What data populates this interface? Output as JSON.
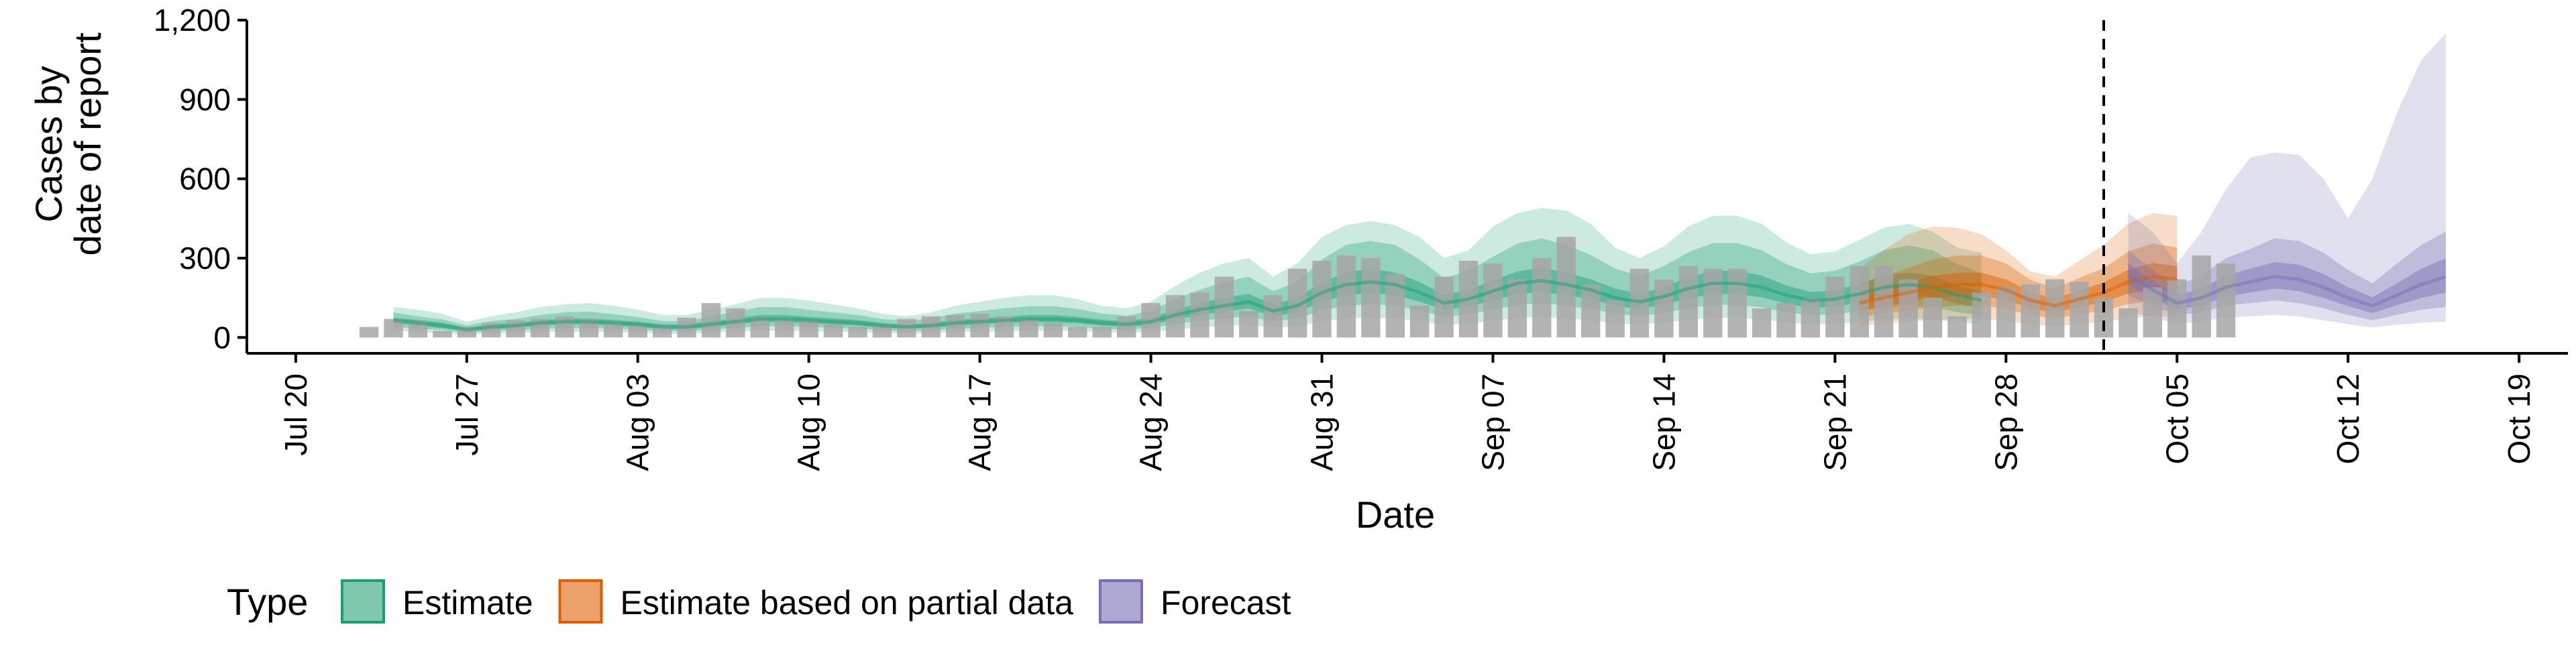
{
  "chart_data": {
    "type": "area",
    "xlabel": "Date",
    "ylabel_lines": [
      "Cases by",
      "date of report"
    ],
    "x_range": [
      "2020-07-18",
      "2020-10-21"
    ],
    "ylim": [
      -60,
      1200
    ],
    "y_ticks": [
      0,
      300,
      600,
      900,
      1200
    ],
    "y_tick_labels": [
      "0",
      "300",
      "600",
      "900",
      "1,200"
    ],
    "x_ticks": [
      "2020-07-20",
      "2020-07-27",
      "2020-08-03",
      "2020-08-10",
      "2020-08-17",
      "2020-08-24",
      "2020-08-31",
      "2020-09-07",
      "2020-09-14",
      "2020-09-21",
      "2020-09-28",
      "2020-10-05",
      "2020-10-12",
      "2020-10-19"
    ],
    "x_tick_labels": [
      "Jul 20",
      "Jul 27",
      "Aug 03",
      "Aug 10",
      "Aug 17",
      "Aug 24",
      "Aug 31",
      "Sep 07",
      "Sep 14",
      "Sep 21",
      "Sep 28",
      "Oct 05",
      "Oct 12",
      "Oct 19"
    ],
    "grid": false,
    "legend_position": "bottom",
    "legend_title": "Type",
    "legend_items": [
      {
        "label": "Estimate",
        "fill": "#7fc7ad",
        "stroke": "#1b9e77"
      },
      {
        "label": "Estimate based on partial data",
        "fill": "#eca06b",
        "stroke": "#d95f02"
      },
      {
        "label": "Forecast",
        "fill": "#ada9d2",
        "stroke": "#7570b3"
      }
    ],
    "vline_date": "2020-10-02",
    "colors": {
      "bars": "#a6a6a6",
      "estimate": "#1b9e77",
      "partial": "#d95f02",
      "forecast": "#7570b3"
    },
    "observed": {
      "start": "2020-07-23",
      "values": [
        40,
        70,
        60,
        25,
        40,
        55,
        65,
        70,
        80,
        70,
        55,
        45,
        45,
        75,
        130,
        110,
        75,
        70,
        65,
        50,
        40,
        45,
        70,
        80,
        85,
        90,
        80,
        70,
        55,
        40,
        40,
        80,
        130,
        160,
        170,
        230,
        100,
        160,
        260,
        290,
        310,
        300,
        240,
        120,
        230,
        290,
        280,
        220,
        300,
        380,
        200,
        140,
        260,
        220,
        270,
        260,
        260,
        110,
        130,
        150,
        230,
        270,
        270,
        220,
        150,
        80,
        170,
        190,
        200,
        220,
        210,
        150,
        110,
        190,
        220,
        310,
        280
      ]
    },
    "estimate": {
      "start": "2020-07-24",
      "median": [
        65,
        55,
        45,
        30,
        40,
        45,
        55,
        60,
        60,
        55,
        50,
        40,
        40,
        50,
        60,
        70,
        70,
        65,
        60,
        55,
        45,
        40,
        45,
        55,
        60,
        65,
        70,
        70,
        65,
        55,
        50,
        60,
        85,
        105,
        120,
        135,
        100,
        120,
        170,
        200,
        210,
        200,
        170,
        130,
        145,
        175,
        205,
        215,
        200,
        180,
        150,
        135,
        155,
        185,
        205,
        205,
        190,
        160,
        140,
        145,
        165,
        190,
        200,
        190,
        160,
        140
      ],
      "inner_lo": [
        55,
        45,
        35,
        25,
        30,
        37,
        45,
        50,
        50,
        45,
        40,
        32,
        32,
        40,
        50,
        58,
        58,
        54,
        50,
        45,
        37,
        33,
        37,
        45,
        50,
        54,
        58,
        58,
        54,
        45,
        40,
        48,
        68,
        85,
        98,
        110,
        80,
        96,
        136,
        160,
        168,
        160,
        136,
        104,
        116,
        140,
        164,
        172,
        160,
        144,
        120,
        108,
        124,
        148,
        164,
        164,
        152,
        128,
        112,
        116,
        132,
        152,
        160,
        152,
        128,
        112
      ],
      "inner_hi": [
        75,
        66,
        56,
        36,
        50,
        55,
        65,
        72,
        72,
        66,
        60,
        50,
        50,
        62,
        72,
        85,
        85,
        78,
        72,
        66,
        55,
        48,
        55,
        67,
        72,
        78,
        85,
        85,
        78,
        67,
        62,
        74,
        105,
        130,
        150,
        165,
        125,
        150,
        210,
        245,
        260,
        245,
        210,
        160,
        180,
        215,
        250,
        265,
        245,
        220,
        185,
        166,
        190,
        228,
        252,
        252,
        234,
        197,
        172,
        178,
        203,
        234,
        246,
        234,
        197,
        172
      ],
      "mid_lo": [
        40,
        33,
        28,
        18,
        24,
        27,
        33,
        35,
        36,
        33,
        30,
        24,
        24,
        30,
        36,
        42,
        42,
        40,
        36,
        33,
        27,
        24,
        27,
        33,
        36,
        40,
        42,
        42,
        40,
        33,
        30,
        36,
        51,
        63,
        72,
        80,
        60,
        72,
        102,
        120,
        126,
        120,
        102,
        78,
        87,
        105,
        123,
        129,
        120,
        108,
        90,
        80,
        93,
        111,
        123,
        123,
        114,
        96,
        84,
        87,
        99,
        114,
        120,
        114,
        96,
        84
      ],
      "mid_hi": [
        95,
        80,
        68,
        45,
        62,
        70,
        85,
        95,
        98,
        88,
        78,
        62,
        62,
        80,
        98,
        115,
        115,
        105,
        95,
        85,
        70,
        62,
        72,
        90,
        100,
        110,
        118,
        118,
        108,
        90,
        82,
        100,
        145,
        180,
        210,
        230,
        175,
        210,
        295,
        350,
        365,
        350,
        295,
        225,
        252,
        305,
        355,
        375,
        350,
        312,
        260,
        233,
        270,
        322,
        357,
        357,
        330,
        278,
        243,
        252,
        287,
        330,
        348,
        330,
        278,
        243
      ],
      "outer_lo": [
        25,
        20,
        16,
        10,
        14,
        16,
        20,
        22,
        22,
        20,
        18,
        14,
        14,
        18,
        22,
        26,
        26,
        24,
        22,
        20,
        16,
        14,
        16,
        20,
        22,
        24,
        26,
        26,
        24,
        20,
        18,
        22,
        30,
        38,
        43,
        48,
        36,
        43,
        61,
        72,
        75,
        72,
        61,
        47,
        52,
        63,
        74,
        77,
        72,
        65,
        54,
        48,
        56,
        66,
        74,
        74,
        68,
        58,
        50,
        52,
        59,
        68,
        72,
        68,
        58,
        50
      ],
      "outer_hi": [
        115,
        105,
        90,
        60,
        80,
        95,
        115,
        125,
        130,
        120,
        105,
        85,
        85,
        105,
        125,
        150,
        150,
        140,
        125,
        110,
        90,
        80,
        95,
        120,
        135,
        150,
        160,
        160,
        145,
        120,
        110,
        135,
        195,
        245,
        280,
        300,
        230,
        280,
        380,
        425,
        440,
        425,
        380,
        300,
        330,
        420,
        470,
        490,
        480,
        430,
        340,
        300,
        345,
        420,
        460,
        460,
        430,
        360,
        315,
        325,
        370,
        415,
        430,
        400,
        340,
        320
      ]
    },
    "partial": {
      "start": "2020-09-22",
      "median": [
        130,
        150,
        170,
        190,
        200,
        200,
        180,
        140,
        120,
        145,
        170,
        210,
        230,
        220
      ],
      "inner_lo": [
        100,
        118,
        134,
        150,
        158,
        158,
        142,
        110,
        94,
        114,
        134,
        166,
        182,
        174
      ],
      "inner_hi": [
        160,
        185,
        208,
        232,
        245,
        245,
        220,
        172,
        147,
        178,
        208,
        256,
        282,
        270
      ],
      "mid_lo": [
        78,
        90,
        102,
        114,
        120,
        120,
        108,
        84,
        72,
        87,
        102,
        126,
        138,
        132
      ],
      "mid_hi": [
        200,
        232,
        262,
        295,
        310,
        310,
        280,
        218,
        186,
        225,
        262,
        325,
        355,
        340
      ],
      "outer_lo": [
        45,
        52,
        60,
        66,
        70,
        70,
        63,
        49,
        42,
        51,
        60,
        73,
        81,
        77
      ],
      "outer_hi": [
        260,
        330,
        390,
        420,
        415,
        390,
        330,
        250,
        230,
        290,
        350,
        430,
        470,
        460
      ]
    },
    "forecast": {
      "start": "2020-10-03",
      "median": [
        240,
        180,
        130,
        150,
        190,
        210,
        230,
        220,
        190,
        150,
        120,
        160,
        200,
        230
      ],
      "inner_lo": [
        200,
        150,
        105,
        120,
        155,
        170,
        185,
        175,
        150,
        118,
        92,
        122,
        150,
        170
      ],
      "inner_hi": [
        280,
        215,
        160,
        185,
        235,
        260,
        285,
        275,
        240,
        190,
        152,
        205,
        260,
        300
      ],
      "mid_lo": [
        160,
        120,
        85,
        95,
        120,
        130,
        140,
        130,
        110,
        85,
        65,
        85,
        105,
        115
      ],
      "mid_hi": [
        330,
        255,
        195,
        235,
        300,
        335,
        375,
        365,
        320,
        255,
        205,
        280,
        350,
        400
      ],
      "outer_lo": [
        100,
        75,
        52,
        60,
        75,
        80,
        85,
        80,
        65,
        50,
        38,
        48,
        55,
        60
      ],
      "outer_hi": [
        470,
        400,
        280,
        400,
        560,
        680,
        700,
        690,
        600,
        450,
        600,
        850,
        1050,
        1150
      ]
    }
  }
}
